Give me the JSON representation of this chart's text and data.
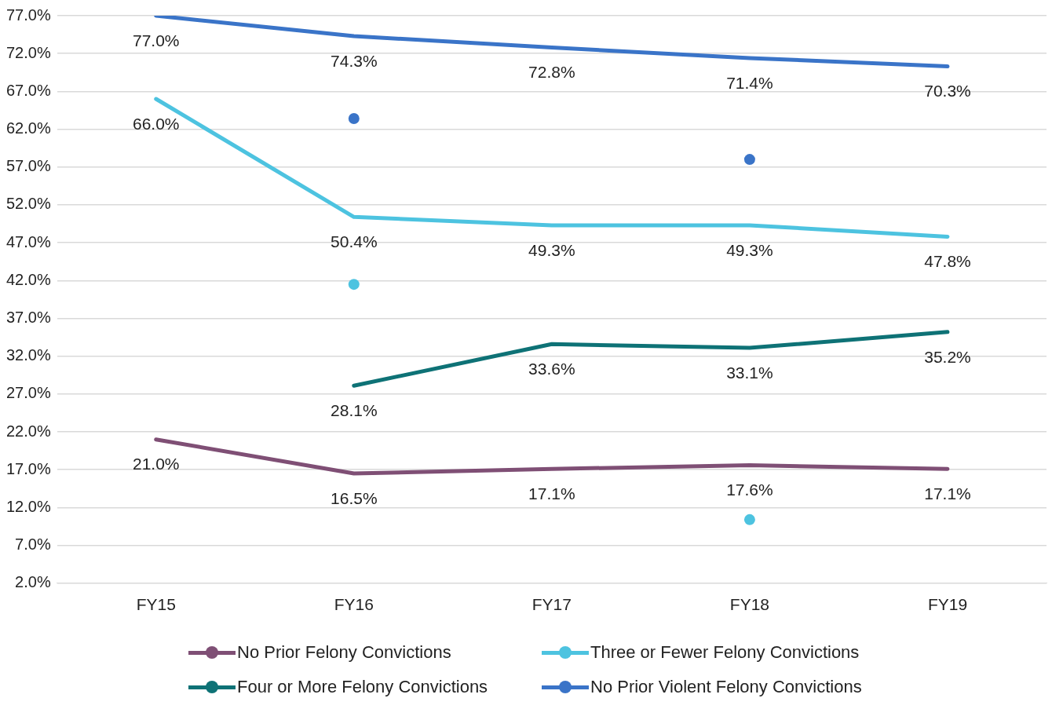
{
  "chart_data": {
    "type": "line",
    "categories": [
      "FY15",
      "FY16",
      "FY17",
      "FY18",
      "FY19"
    ],
    "series": [
      {
        "name": "No Prior Felony Convictions",
        "color": "#7f4f75",
        "values": [
          21.0,
          16.5,
          17.1,
          17.6,
          17.1
        ],
        "value_labels": [
          "21.0%",
          "16.5%",
          "17.1%",
          "17.6%",
          "17.1%"
        ]
      },
      {
        "name": "Three or Fewer Felony Convictions",
        "color": "#4dc3e0",
        "values": [
          66.0,
          50.4,
          49.3,
          49.3,
          47.8
        ],
        "value_labels": [
          "66.0%",
          "50.4%",
          "49.3%",
          "49.3%",
          "47.8%"
        ]
      },
      {
        "name": "Four or More Felony Convictions",
        "color": "#0e7276",
        "values": [
          null,
          28.1,
          33.6,
          33.1,
          35.2
        ],
        "value_labels": [
          null,
          "28.1%",
          "33.6%",
          "33.1%",
          "35.2%"
        ]
      },
      {
        "name": "No Prior Violent Felony Convictions",
        "color": "#3a74c8",
        "values": [
          77.0,
          74.3,
          72.8,
          71.4,
          70.3
        ],
        "value_labels": [
          "77.0%",
          "74.3%",
          "72.8%",
          "71.4%",
          "70.3%"
        ]
      },
      {
        "type": "scatter",
        "marker": "circle",
        "color": "#3a74c8",
        "values": [
          null,
          63.4,
          null,
          58.0,
          null
        ]
      },
      {
        "type": "scatter",
        "marker": "circle",
        "color": "#4dc3e0",
        "values": [
          null,
          41.5,
          null,
          10.4,
          null
        ]
      }
    ],
    "ylim": [
      2,
      77
    ],
    "yticks": [
      {
        "value": 2,
        "label": "2.0%"
      },
      {
        "value": 7,
        "label": "7.0%"
      },
      {
        "value": 12,
        "label": "12.0%"
      },
      {
        "value": 17,
        "label": "17.0%"
      },
      {
        "value": 22,
        "label": "22.0%"
      },
      {
        "value": 27,
        "label": "27.0%"
      },
      {
        "value": 32,
        "label": "32.0%"
      },
      {
        "value": 37,
        "label": "37.0%"
      },
      {
        "value": 42,
        "label": "42.0%"
      },
      {
        "value": 47,
        "label": "47.0%"
      },
      {
        "value": 52,
        "label": "52.0%"
      },
      {
        "value": 57,
        "label": "57.0%"
      },
      {
        "value": 62,
        "label": "62.0%"
      },
      {
        "value": 67,
        "label": "67.0%"
      },
      {
        "value": 72,
        "label": "72.0%"
      },
      {
        "value": 77,
        "label": "77.0%"
      }
    ],
    "grid": "y",
    "legend": "bottom",
    "marker": "none"
  }
}
